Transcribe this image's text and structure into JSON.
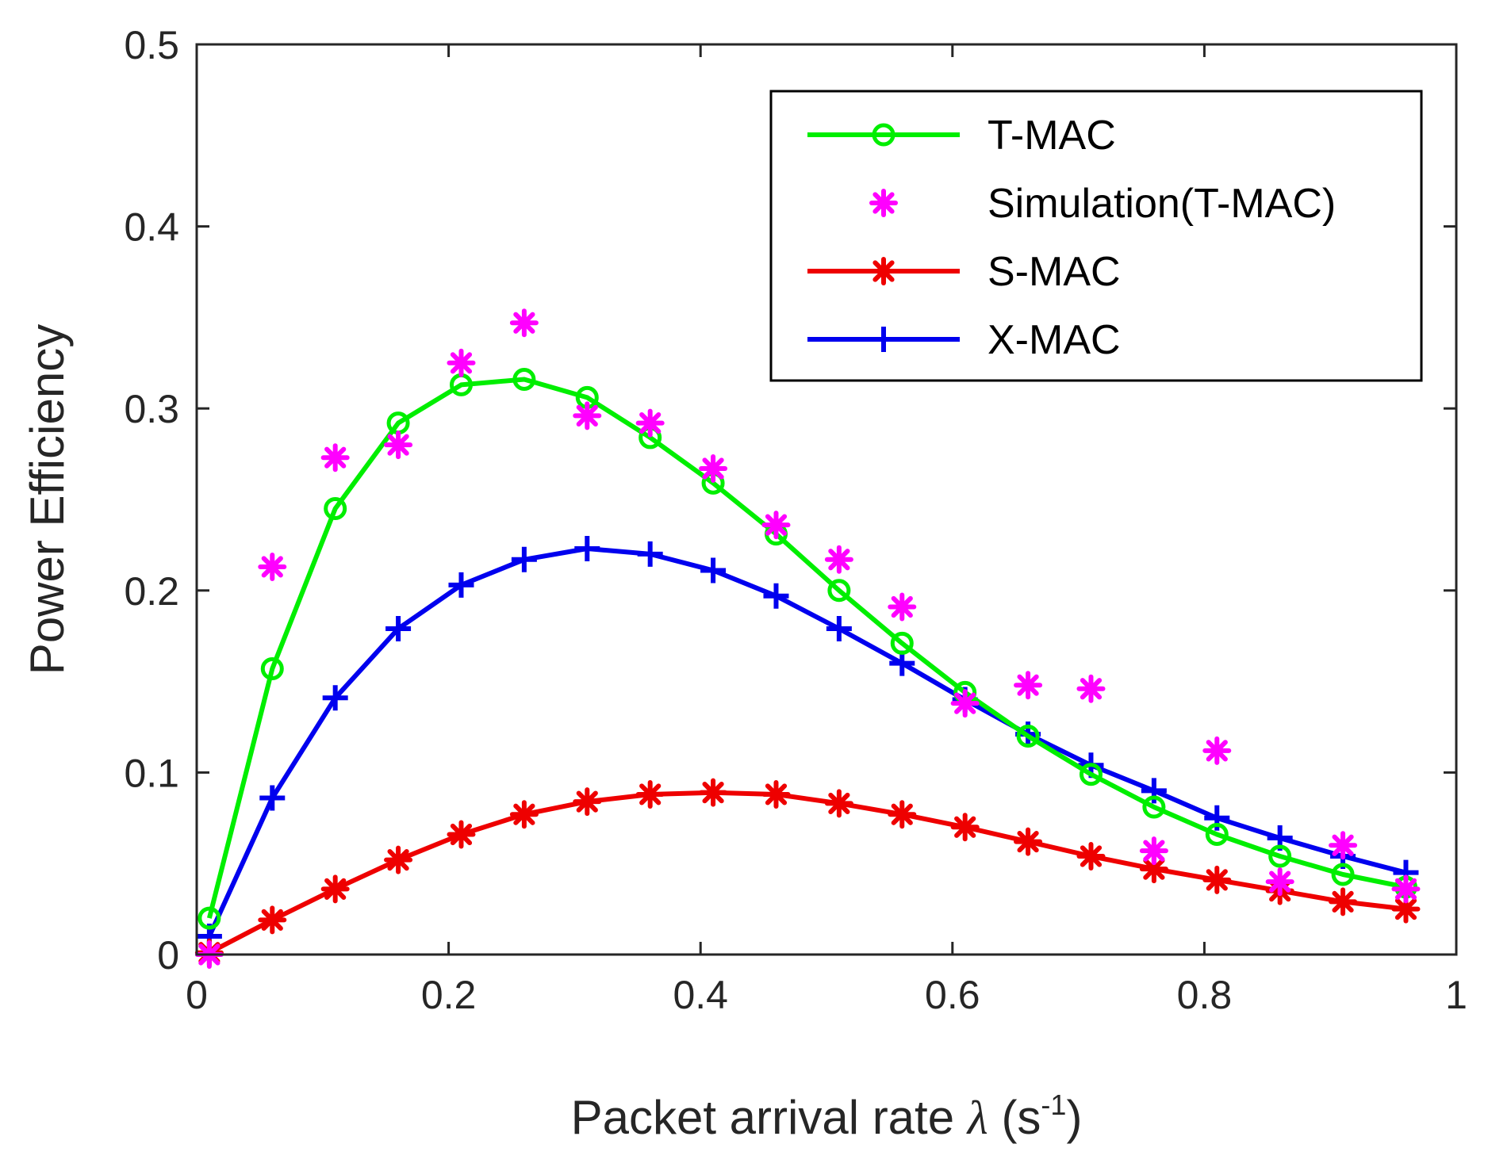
{
  "chart_data": {
    "type": "line",
    "title": "",
    "xlabel": "Packet arrival rate",
    "xlabel_symbol": "λ",
    "xlabel_unit_base": "(s",
    "xlabel_unit_exp": "-1",
    "xlabel_unit_close": ")",
    "ylabel": "Power Efficiency",
    "xlim": [
      0,
      1
    ],
    "ylim": [
      0,
      0.5
    ],
    "xticks": [
      0,
      0.2,
      0.4,
      0.6,
      0.8,
      1
    ],
    "xtick_labels": [
      "0",
      "0.2",
      "0.4",
      "0.6",
      "0.8",
      "1"
    ],
    "yticks": [
      0,
      0.1,
      0.2,
      0.3,
      0.4,
      0.5
    ],
    "ytick_labels": [
      "0",
      "0.1",
      "0.2",
      "0.3",
      "0.4",
      "0.5"
    ],
    "grid": false,
    "legend_position": "top-right",
    "x": [
      0.01,
      0.06,
      0.11,
      0.16,
      0.21,
      0.26,
      0.31,
      0.36,
      0.41,
      0.46,
      0.51,
      0.56,
      0.61,
      0.66,
      0.71,
      0.76,
      0.81,
      0.86,
      0.91,
      0.96
    ],
    "series": [
      {
        "name": "T-MAC",
        "color": "#00ee00",
        "marker": "circle",
        "line": true,
        "values": [
          0.02,
          0.157,
          0.245,
          0.292,
          0.313,
          0.316,
          0.306,
          0.284,
          0.259,
          0.231,
          0.2,
          0.171,
          0.144,
          0.12,
          0.099,
          0.081,
          0.066,
          0.054,
          0.044,
          0.037
        ]
      },
      {
        "name": "Simulation(T-MAC)",
        "color": "#ff00ff",
        "marker": "asterisk",
        "line": false,
        "values": [
          0.0,
          0.213,
          0.273,
          0.28,
          0.325,
          0.347,
          0.296,
          0.292,
          0.267,
          0.236,
          0.217,
          0.191,
          0.138,
          0.148,
          0.146,
          0.057,
          0.112,
          0.04,
          0.06,
          0.036
        ]
      },
      {
        "name": "S-MAC",
        "color": "#ee0000",
        "marker": "asterisk",
        "line": true,
        "values": [
          0.001,
          0.019,
          0.036,
          0.052,
          0.066,
          0.077,
          0.084,
          0.088,
          0.089,
          0.088,
          0.083,
          0.077,
          0.07,
          0.062,
          0.054,
          0.047,
          0.041,
          0.035,
          0.029,
          0.025
        ]
      },
      {
        "name": "X-MAC",
        "color": "#0000ee",
        "marker": "plus",
        "line": true,
        "values": [
          0.01,
          0.086,
          0.141,
          0.179,
          0.203,
          0.217,
          0.223,
          0.22,
          0.211,
          0.197,
          0.179,
          0.16,
          0.14,
          0.121,
          0.104,
          0.09,
          0.075,
          0.064,
          0.054,
          0.045
        ]
      }
    ]
  }
}
